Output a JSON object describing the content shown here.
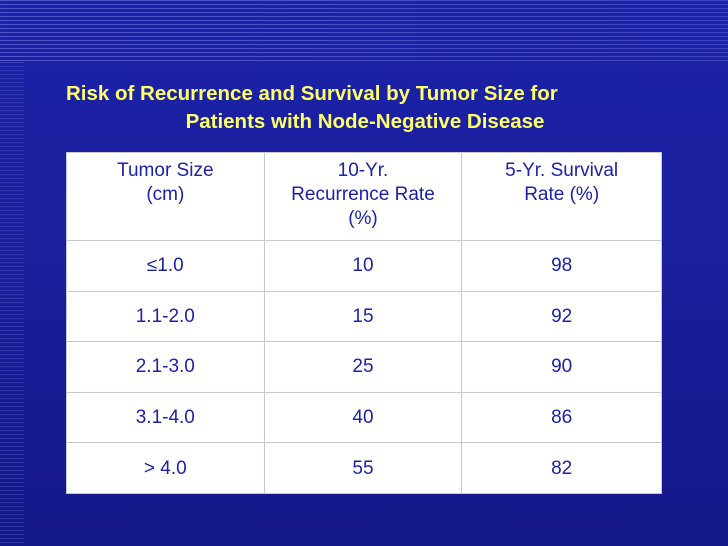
{
  "title": {
    "line1": "Risk of Recurrence and Survival by Tumor Size for",
    "line2": "Patients with Node-Negative Disease"
  },
  "table": {
    "headers": [
      [
        "Tumor Size",
        "(cm)"
      ],
      [
        "10-Yr.",
        "Recurrence Rate",
        "(%)"
      ],
      [
        "5-Yr. Survival",
        "Rate (%)"
      ]
    ],
    "rows": [
      [
        "≤1.0",
        "10",
        "98"
      ],
      [
        "1.1-2.0",
        "15",
        "92"
      ],
      [
        "2.1-3.0",
        "25",
        "90"
      ],
      [
        "3.1-4.0",
        "40",
        "86"
      ],
      [
        "> 4.0",
        "55",
        "82"
      ]
    ]
  },
  "colors": {
    "background": "#1c22a8",
    "title": "#ffff66",
    "table_text": "#1c22a8",
    "table_bg": "#ffffff"
  }
}
